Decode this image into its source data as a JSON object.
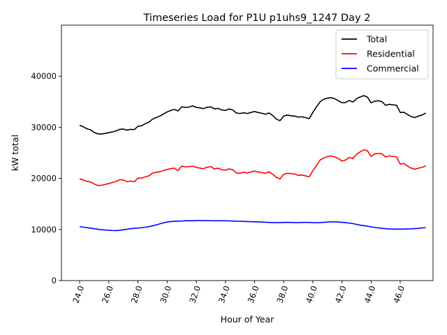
{
  "chart_data": {
    "type": "line",
    "title": "Timeseries Load for P1U p1uhs9_1247  Day 2",
    "xlabel": "Hour of Year",
    "ylabel": "kW total",
    "xlim": [
      22.75,
      48.25
    ],
    "ylim": [
      0,
      50000
    ],
    "x_ticks": [
      24,
      26,
      28,
      30,
      32,
      34,
      36,
      38,
      40,
      42,
      44,
      46
    ],
    "x_tick_labels": [
      "24.0",
      "26.0",
      "28.0",
      "30.0",
      "32.0",
      "34.0",
      "36.0",
      "38.0",
      "40.0",
      "42.0",
      "44.0",
      "46.0"
    ],
    "y_ticks": [
      0,
      10000,
      20000,
      30000,
      40000
    ],
    "y_tick_labels": [
      "0",
      "10000",
      "20000",
      "30000",
      "40000"
    ],
    "grid": false,
    "legend_position": "top-right",
    "x": [
      24.0,
      24.25,
      24.5,
      24.75,
      25.0,
      25.25,
      25.5,
      25.75,
      26.0,
      26.25,
      26.5,
      26.75,
      27.0,
      27.25,
      27.5,
      27.75,
      28.0,
      28.25,
      28.5,
      28.75,
      29.0,
      29.25,
      29.5,
      29.75,
      30.0,
      30.25,
      30.5,
      30.75,
      31.0,
      31.25,
      31.5,
      31.75,
      32.0,
      32.25,
      32.5,
      32.75,
      33.0,
      33.25,
      33.5,
      33.75,
      34.0,
      34.25,
      34.5,
      34.75,
      35.0,
      35.25,
      35.5,
      35.75,
      36.0,
      36.25,
      36.5,
      36.75,
      37.0,
      37.25,
      37.5,
      37.75,
      38.0,
      38.25,
      38.5,
      38.75,
      39.0,
      39.25,
      39.5,
      39.75,
      40.0,
      40.25,
      40.5,
      40.75,
      41.0,
      41.25,
      41.5,
      41.75,
      42.0,
      42.25,
      42.5,
      42.75,
      43.0,
      43.25,
      43.5,
      43.75,
      44.0,
      44.25,
      44.5,
      44.75,
      45.0,
      45.25,
      45.5,
      45.75,
      46.0,
      46.25,
      46.5,
      46.75,
      47.0,
      47.25,
      47.5,
      47.75
    ],
    "series": [
      {
        "name": "Total",
        "color": "#000000",
        "values": [
          30400,
          30100,
          29700,
          29500,
          29000,
          28700,
          28700,
          28800,
          28950,
          29100,
          29300,
          29600,
          29650,
          29450,
          29600,
          29550,
          30200,
          30300,
          30700,
          31000,
          31600,
          31900,
          32200,
          32600,
          33000,
          33300,
          33500,
          33200,
          34000,
          33900,
          33950,
          34200,
          33900,
          33800,
          33650,
          33950,
          34000,
          33600,
          33700,
          33400,
          33300,
          33600,
          33400,
          32800,
          32700,
          32850,
          32700,
          32900,
          33100,
          32900,
          32750,
          32550,
          32800,
          32300,
          31600,
          31300,
          32200,
          32400,
          32250,
          32200,
          32000,
          32050,
          31900,
          31700,
          32900,
          34000,
          35000,
          35500,
          35700,
          35800,
          35600,
          35200,
          34800,
          34850,
          35250,
          34950,
          35600,
          35950,
          36200,
          35900,
          34800,
          35100,
          35200,
          35000,
          34300,
          34500,
          34400,
          34300,
          32900,
          32950,
          32500,
          32100,
          31900,
          32200,
          32400,
          32800
        ]
      },
      {
        "name": "Residential",
        "color": "#ff0000",
        "values": [
          19900,
          19700,
          19400,
          19300,
          18900,
          18600,
          18650,
          18800,
          19000,
          19200,
          19400,
          19750,
          19700,
          19350,
          19500,
          19350,
          20050,
          20050,
          20300,
          20500,
          21050,
          21200,
          21300,
          21550,
          21750,
          21900,
          22000,
          21500,
          22400,
          22250,
          22300,
          22400,
          22150,
          22000,
          21900,
          22200,
          22300,
          21850,
          22000,
          21700,
          21600,
          21850,
          21700,
          21100,
          21000,
          21200,
          21050,
          21250,
          21450,
          21250,
          21150,
          21000,
          21300,
          20800,
          20200,
          19900,
          20800,
          21000,
          20950,
          20850,
          20600,
          20650,
          20500,
          20300,
          21500,
          22500,
          23600,
          24000,
          24250,
          24400,
          24200,
          23900,
          23400,
          23600,
          24100,
          23900,
          24700,
          25200,
          25600,
          25400,
          24300,
          24800,
          24900,
          24800,
          24200,
          24400,
          24300,
          24200,
          22800,
          22900,
          22400,
          22000,
          21800,
          22000,
          22150,
          22450
        ]
      },
      {
        "name": "Commercial",
        "color": "#0000ff",
        "values": [
          10550,
          10450,
          10350,
          10250,
          10150,
          10050,
          9950,
          9900,
          9850,
          9800,
          9780,
          9850,
          9950,
          10050,
          10150,
          10220,
          10280,
          10350,
          10450,
          10550,
          10700,
          10900,
          11100,
          11300,
          11450,
          11550,
          11600,
          11620,
          11650,
          11700,
          11720,
          11700,
          11720,
          11750,
          11730,
          11720,
          11720,
          11710,
          11700,
          11700,
          11700,
          11680,
          11660,
          11620,
          11600,
          11580,
          11550,
          11520,
          11500,
          11480,
          11450,
          11420,
          11380,
          11350,
          11350,
          11350,
          11380,
          11400,
          11380,
          11350,
          11350,
          11380,
          11380,
          11380,
          11350,
          11330,
          11350,
          11400,
          11450,
          11480,
          11480,
          11450,
          11400,
          11350,
          11250,
          11150,
          11000,
          10850,
          10750,
          10650,
          10500,
          10400,
          10300,
          10220,
          10150,
          10100,
          10080,
          10070,
          10070,
          10080,
          10100,
          10120,
          10170,
          10220,
          10300,
          10350
        ]
      }
    ]
  }
}
